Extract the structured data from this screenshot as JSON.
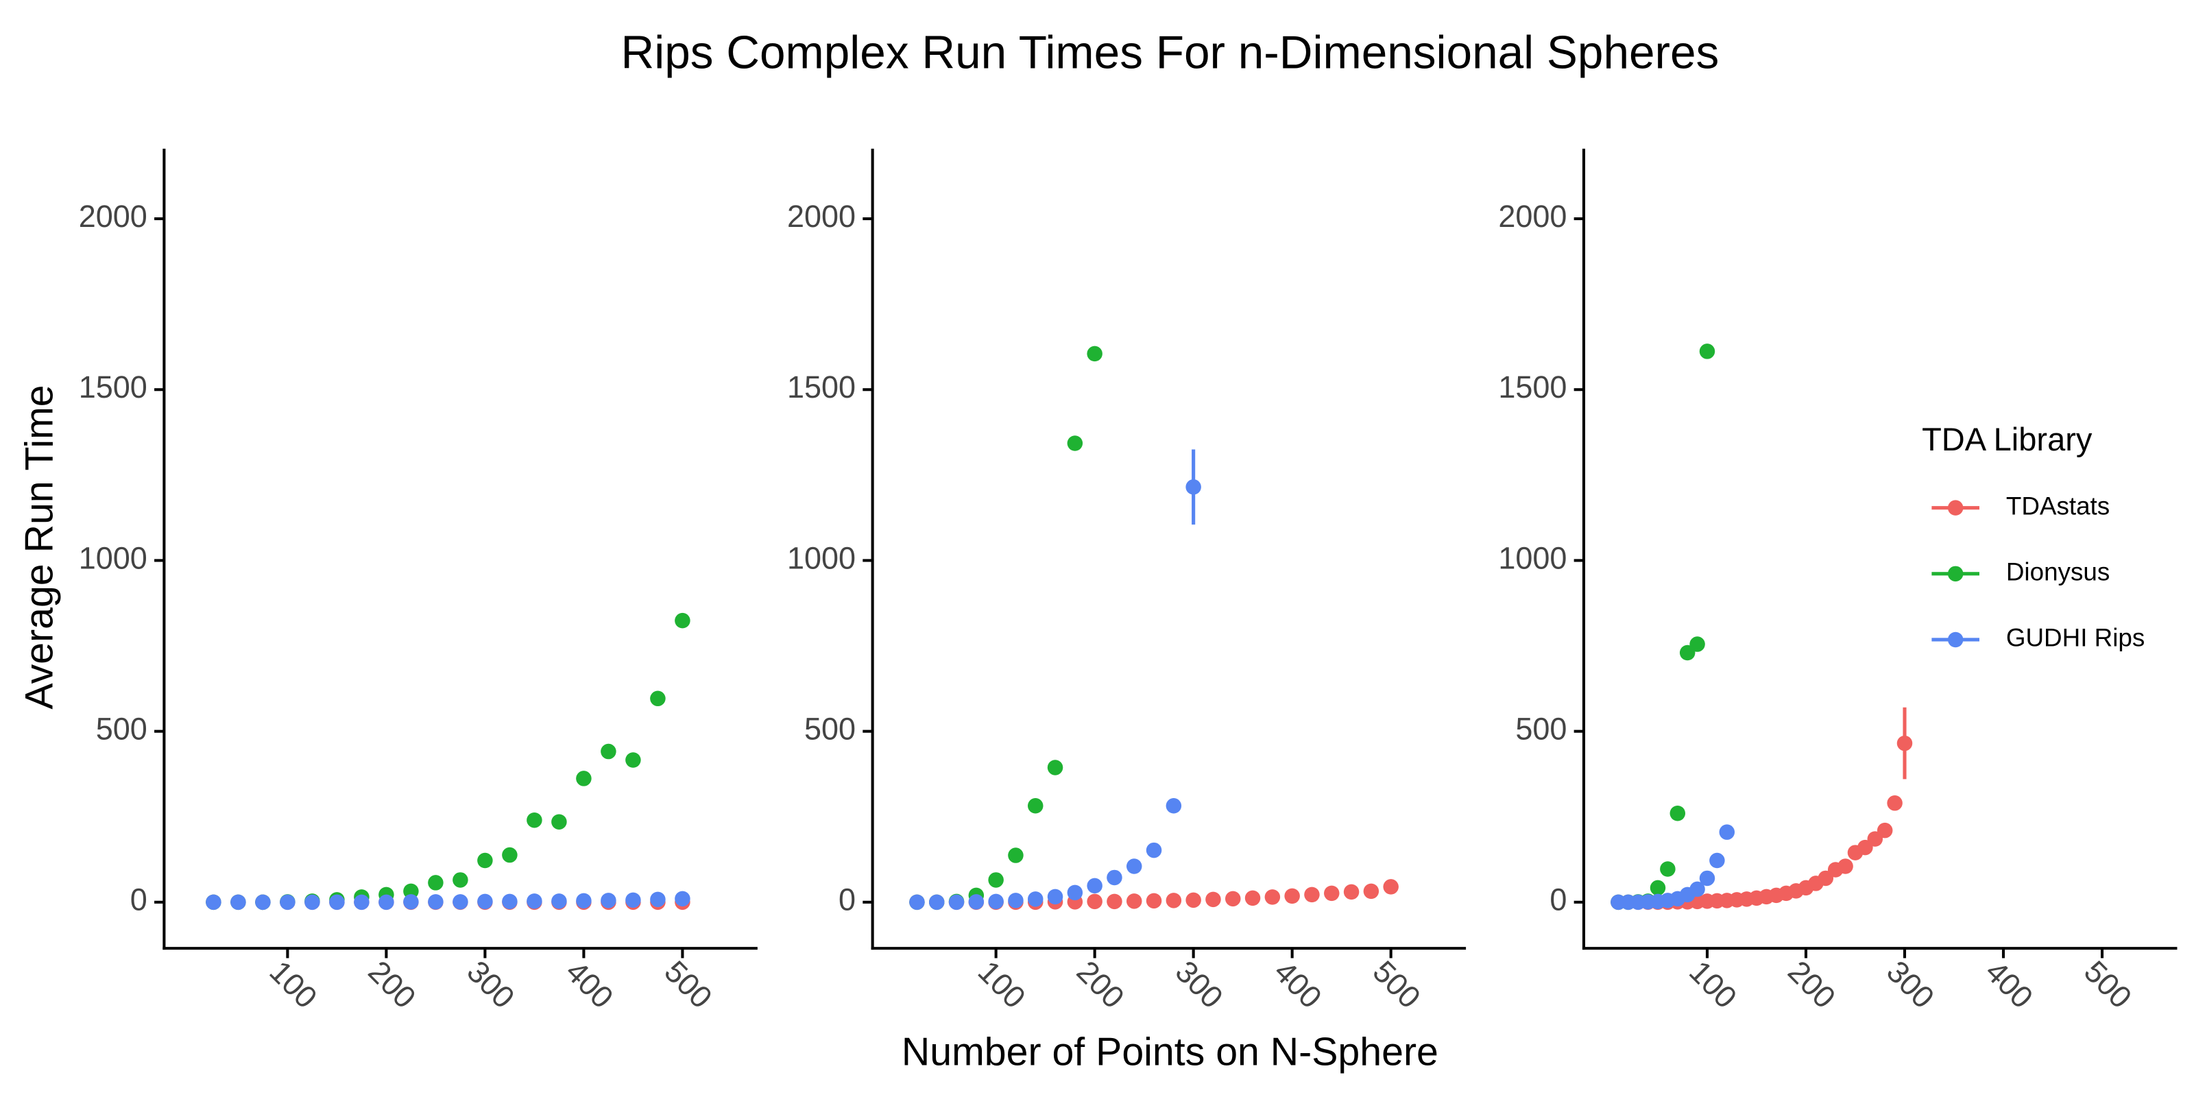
{
  "title": "Rips Complex Run Times For n-Dimensional Spheres",
  "x_label": "Number of Points on N-Sphere",
  "y_label": "Average Run Time",
  "legend": {
    "title": "TDA Library",
    "position": "right",
    "entries": [
      {
        "name": "TDAstats",
        "color": "#f0605d"
      },
      {
        "name": "Dionysus",
        "color": "#1fb232"
      },
      {
        "name": "GUDHI Rips",
        "color": "#5685f2"
      }
    ]
  },
  "chart_data": [
    {
      "type": "scatter",
      "xlim": [
        -25,
        576
      ],
      "ylim": [
        -135,
        2205
      ],
      "xticks": [
        100,
        200,
        300,
        400,
        500
      ],
      "yticks": [
        0,
        500,
        1000,
        1500,
        2000
      ],
      "series": [
        {
          "x": [
            25,
            50,
            75,
            100,
            125,
            150,
            175,
            200,
            225,
            250,
            275,
            300,
            325,
            350,
            375,
            400,
            425,
            450,
            475,
            500
          ],
          "values": [
            0,
            0,
            0,
            0,
            0,
            0,
            0,
            0,
            0,
            0,
            0,
            0,
            0,
            0,
            0,
            0,
            0,
            0,
            0,
            0
          ]
        },
        {
          "x": [
            25,
            50,
            75,
            100,
            125,
            150,
            175,
            200,
            225,
            250,
            275,
            300,
            325,
            350,
            375,
            400,
            425,
            450,
            475,
            500
          ],
          "values": [
            0,
            0,
            0,
            1,
            3,
            7,
            15,
            22,
            32,
            57,
            65,
            122,
            138,
            240,
            235,
            362,
            441,
            416,
            596,
            824
          ]
        },
        {
          "x": [
            25,
            50,
            75,
            100,
            125,
            150,
            175,
            200,
            225,
            250,
            275,
            300,
            325,
            350,
            375,
            400,
            425,
            450,
            475,
            500
          ],
          "values": [
            0,
            0,
            0,
            0,
            0,
            0,
            0,
            0,
            1,
            1,
            1,
            2,
            2,
            3,
            3,
            4,
            5,
            6,
            8,
            10
          ]
        }
      ]
    },
    {
      "type": "scatter",
      "xlim": [
        -25,
        576
      ],
      "ylim": [
        -135,
        2205
      ],
      "xticks": [
        100,
        200,
        300,
        400,
        500
      ],
      "yticks": [
        0,
        500,
        1000,
        1500,
        2000
      ],
      "series": [
        {
          "x": [
            20,
            40,
            60,
            80,
            100,
            120,
            140,
            160,
            180,
            200,
            220,
            240,
            260,
            280,
            300,
            320,
            340,
            360,
            380,
            400,
            420,
            440,
            460,
            480,
            500
          ],
          "values": [
            0,
            0,
            0,
            0,
            0,
            0,
            0,
            1,
            1,
            2,
            2,
            3,
            4,
            5,
            6,
            8,
            10,
            12,
            15,
            18,
            22,
            26,
            30,
            32,
            45
          ]
        },
        {
          "x": [
            20,
            40,
            60,
            80,
            100,
            120,
            140,
            160,
            180,
            200
          ],
          "values": [
            0,
            0,
            2,
            20,
            65,
            137,
            282,
            394,
            1343,
            1605
          ]
        },
        {
          "x": [
            20,
            40,
            60,
            80,
            100,
            120,
            140,
            160,
            180,
            200,
            220,
            240,
            260,
            280,
            300
          ],
          "values": [
            0,
            0,
            0,
            1,
            2,
            5,
            9,
            16,
            28,
            48,
            72,
            105,
            152,
            282,
            1215
          ],
          "errors": [
            null,
            null,
            null,
            null,
            null,
            null,
            null,
            null,
            null,
            null,
            null,
            null,
            null,
            null,
            110
          ]
        }
      ]
    },
    {
      "type": "scatter",
      "xlim": [
        -25,
        576
      ],
      "ylim": [
        -135,
        2205
      ],
      "xticks": [
        100,
        200,
        300,
        400,
        500
      ],
      "yticks": [
        0,
        500,
        1000,
        1500,
        2000
      ],
      "series": [
        {
          "x": [
            10,
            20,
            30,
            40,
            50,
            60,
            70,
            80,
            90,
            100,
            110,
            120,
            130,
            140,
            150,
            160,
            170,
            180,
            190,
            200,
            210,
            220,
            230,
            240,
            250,
            260,
            270,
            280,
            290,
            300
          ],
          "values": [
            0,
            0,
            0,
            0,
            0,
            0,
            1,
            1,
            2,
            3,
            4,
            5,
            7,
            9,
            12,
            16,
            20,
            26,
            33,
            42,
            55,
            70,
            95,
            105,
            145,
            160,
            185,
            210,
            290,
            465
          ],
          "errors": [
            null,
            null,
            null,
            null,
            null,
            null,
            null,
            null,
            null,
            null,
            null,
            null,
            null,
            null,
            null,
            null,
            null,
            null,
            null,
            null,
            null,
            null,
            null,
            null,
            null,
            null,
            null,
            null,
            null,
            105
          ]
        },
        {
          "x": [
            10,
            20,
            30,
            40,
            50,
            60,
            70,
            80,
            90,
            100
          ],
          "values": [
            0,
            0,
            1,
            3,
            42,
            97,
            260,
            730,
            755,
            1612
          ]
        },
        {
          "x": [
            10,
            20,
            30,
            40,
            50,
            60,
            70,
            80,
            90,
            100,
            110,
            120
          ],
          "values": [
            0,
            0,
            0,
            1,
            2,
            5,
            10,
            22,
            38,
            70,
            122,
            205
          ]
        }
      ]
    }
  ]
}
